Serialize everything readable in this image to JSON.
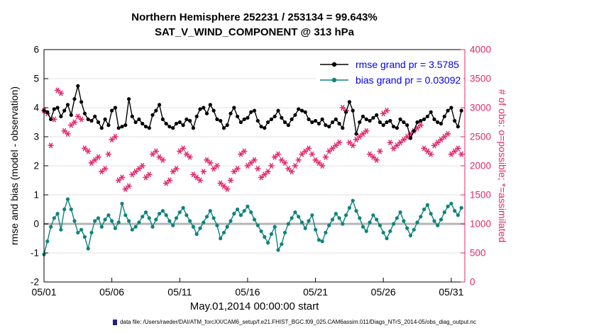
{
  "title_line1": "Northern Hemisphere 252231 / 253134 = 99.643%",
  "title_line2": "SAT_V_WIND_COMPONENT @ 313 hPa",
  "legend": {
    "rmse_label": "rmse grand pr = 3.5785",
    "bias_label": "bias grand pr = 0.03092"
  },
  "axes": {
    "left_label": "rmse and bias (model - observation)",
    "right_label": "# of obs: o=possible; *=assimilated",
    "x_label": "May.01,2014 00:00:00 start"
  },
  "footer": "data file: /Users/raeder/DAI/ATM_forcXX/CAM6_setup/f.e21.FHIST_BGC.f09_025.CAM6assim.011/Diags_NTrS_2014-05/obs_diag_output.nc",
  "colors": {
    "rmse": "#000000",
    "bias": "#0e837c",
    "obs": "#e2286e",
    "legend_text": "#0000ee",
    "grid": "#e2e2e2",
    "zero_line": "#b4b4b4",
    "axis": "#000000",
    "footer_marker": "#22227a"
  },
  "chart_data": {
    "type": "line",
    "title": "Northern Hemisphere 252231 / 253134 = 99.643% | SAT_V_WIND_COMPONENT @ 313 hPa",
    "xlabel": "May.01,2014 00:00:00 start",
    "ylabel_left": "rmse and bias (model - observation)",
    "ylabel_right": "# of obs: o=possible; *=assimilated",
    "grid": "horizontal",
    "legend_position": "upper-right-inside",
    "x_range": [
      0,
      31
    ],
    "x_step": 0.25,
    "x_ticks": {
      "positions": [
        0,
        5,
        10,
        15,
        20,
        25,
        30
      ],
      "labels": [
        "05/01",
        "05/06",
        "05/11",
        "05/16",
        "05/21",
        "05/26",
        "05/31"
      ]
    },
    "left_axis": {
      "min": -2,
      "max": 6,
      "ticks": [
        -2,
        -1,
        0,
        1,
        2,
        3,
        4,
        5,
        6
      ]
    },
    "right_axis": {
      "min": 0,
      "max": 4000,
      "ticks": [
        0,
        500,
        1000,
        1500,
        2000,
        2500,
        3000,
        3500,
        4000
      ]
    },
    "series": [
      {
        "name": "obs-assimilated",
        "axis": "right",
        "marker": "asterisk",
        "color_key": "obs",
        "line": false,
        "values": [
          2950,
          2900,
          2350,
          2800,
          3300,
          3250,
          2600,
          2550,
          2700,
          2750,
          2850,
          2800,
          2300,
          2250,
          2050,
          2100,
          2150,
          1900,
          1950,
          2200,
          2450,
          2500,
          1750,
          1800,
          1600,
          1650,
          1850,
          1900,
          1950,
          2000,
          1800,
          1850,
          2200,
          2250,
          2150,
          2100,
          1700,
          1750,
          1900,
          1950,
          2250,
          2300,
          2200,
          2150,
          1850,
          1800,
          1750,
          1900,
          2100,
          2050,
          1950,
          2000,
          1700,
          1650,
          1600,
          1750,
          1900,
          1950,
          2200,
          2250,
          2000,
          2050,
          2100,
          1950,
          1800,
          1850,
          1900,
          2000,
          2150,
          2200,
          2100,
          2050,
          1950,
          1900,
          2000,
          2100,
          2200,
          2250,
          2300,
          2200,
          2100,
          2050,
          2000,
          2150,
          2250,
          2300,
          2350,
          2400,
          3000,
          2950,
          2400,
          2350,
          2450,
          2500,
          2550,
          2600,
          2200,
          2150,
          2100,
          2250,
          2900,
          2950,
          2400,
          2300,
          2350,
          2400,
          2450,
          2500,
          2550,
          2600,
          2650,
          2700,
          2300,
          2250,
          2200,
          2350,
          2400,
          2450,
          2500,
          2550,
          2200,
          2250,
          2300,
          2200
        ]
      },
      {
        "name": "bias",
        "axis": "left",
        "marker": "dot",
        "color_key": "bias",
        "line": true,
        "grand_value": 0.03092,
        "values": [
          -1.05,
          -0.6,
          -0.1,
          0.2,
          0.35,
          -0.2,
          0.5,
          0.85,
          0.5,
          0.1,
          -0.3,
          -0.2,
          -0.45,
          -0.85,
          -0.3,
          0.1,
          0.2,
          -0.1,
          0.15,
          0.3,
          0.1,
          -0.15,
          0.05,
          0.7,
          0.3,
          0.1,
          -0.2,
          -0.1,
          0.05,
          0.25,
          0.4,
          0.2,
          -0.1,
          0.15,
          0.35,
          0.45,
          0.3,
          0.1,
          -0.05,
          0.2,
          0.4,
          0.55,
          0.3,
          0.1,
          -0.1,
          -0.35,
          -0.15,
          0.05,
          0.25,
          0.45,
          0.2,
          -0.05,
          -0.5,
          -0.3,
          -0.1,
          0.1,
          0.35,
          0.5,
          0.3,
          0.45,
          0.6,
          0.4,
          0.15,
          -0.05,
          -0.25,
          -0.45,
          -0.65,
          -0.35,
          -0.1,
          -0.9,
          -0.7,
          -0.3,
          0.0,
          0.2,
          0.4,
          0.25,
          0.05,
          -0.15,
          0.1,
          0.3,
          -0.2,
          -0.55,
          -0.6,
          -0.3,
          -0.05,
          0.15,
          0.35,
          0.2,
          0.0,
          0.3,
          0.55,
          0.8,
          0.45,
          0.2,
          -0.1,
          -0.25,
          0.05,
          0.3,
          0.15,
          -0.05,
          -0.3,
          -0.5,
          -0.25,
          0.0,
          0.2,
          0.4,
          0.1,
          -0.15,
          -0.4,
          -0.2,
          0.05,
          0.25,
          0.5,
          0.65,
          0.35,
          0.1,
          -0.05,
          0.15,
          0.4,
          0.6,
          0.7,
          0.45,
          0.3,
          0.55
        ]
      },
      {
        "name": "rmse",
        "axis": "left",
        "marker": "dot",
        "color_key": "rmse",
        "line": true,
        "grand_value": 3.5785,
        "values": [
          3.9,
          3.85,
          3.6,
          3.95,
          4.0,
          3.7,
          3.9,
          4.1,
          3.75,
          4.3,
          4.75,
          4.2,
          3.8,
          3.6,
          3.55,
          3.7,
          3.5,
          3.3,
          3.6,
          3.4,
          3.9,
          4.0,
          3.3,
          3.35,
          3.4,
          4.3,
          3.7,
          3.5,
          3.6,
          3.45,
          3.35,
          3.3,
          3.75,
          3.9,
          4.1,
          3.6,
          3.45,
          3.35,
          3.3,
          3.45,
          3.5,
          3.4,
          3.6,
          3.55,
          3.3,
          3.7,
          3.95,
          4.0,
          3.8,
          4.1,
          3.9,
          3.6,
          3.55,
          3.3,
          3.4,
          3.8,
          4.0,
          3.7,
          3.5,
          3.6,
          3.65,
          3.85,
          3.9,
          3.55,
          3.35,
          3.3,
          3.5,
          3.6,
          3.7,
          3.9,
          3.65,
          3.5,
          3.4,
          3.6,
          3.75,
          3.95,
          3.9,
          3.85,
          3.6,
          3.5,
          3.55,
          3.45,
          3.6,
          3.4,
          3.35,
          3.5,
          3.6,
          3.45,
          3.3,
          3.85,
          4.2,
          3.9,
          3.1,
          3.5,
          3.7,
          3.6,
          3.55,
          3.65,
          3.75,
          3.5,
          3.4,
          3.5,
          3.55,
          3.35,
          3.3,
          3.6,
          3.5,
          3.4,
          2.95,
          3.2,
          3.5,
          3.55,
          3.6,
          3.7,
          3.85,
          3.6,
          3.5,
          3.45,
          3.7,
          3.9,
          4.0,
          3.55,
          3.35,
          3.9
        ]
      }
    ]
  }
}
